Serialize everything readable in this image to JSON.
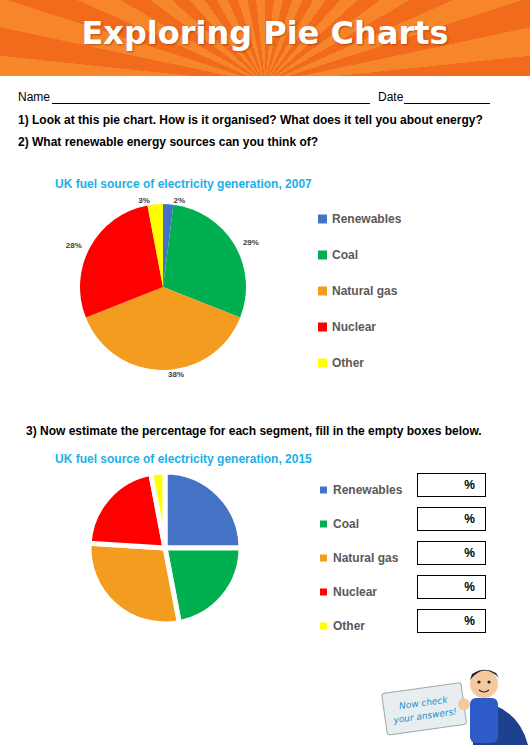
{
  "header": {
    "title": "Exploring Pie Charts"
  },
  "fields": [
    {
      "label": "Name"
    },
    {
      "label": "Date"
    }
  ],
  "questions": [
    "1) Look at this pie chart. How is it organised? What does it tell you about energy?",
    "2) What renewable energy sources can you think of?",
    "3) Now estimate the percentage for each segment, fill in the empty boxes below."
  ],
  "chart_data": [
    {
      "type": "pie",
      "title": "UK fuel source of electricity generation, 2007",
      "categories": [
        "Renewables",
        "Coal",
        "Natural gas",
        "Nuclear",
        "Other"
      ],
      "values": [
        2,
        29,
        38,
        28,
        3
      ],
      "value_labels": [
        "2%",
        "29%",
        "38%",
        "28%",
        "3%"
      ],
      "colors": [
        "#4472c4",
        "#00b050",
        "#f39c1f",
        "#ff0000",
        "#ffff00"
      ],
      "data_labels": true,
      "legend": "right"
    },
    {
      "type": "pie",
      "title": "UK fuel source of electricity generation, 2015",
      "categories": [
        "Renewables",
        "Coal",
        "Natural gas",
        "Nuclear",
        "Other"
      ],
      "values": [
        25,
        22,
        29,
        21,
        3
      ],
      "colors": [
        "#4472c4",
        "#00b050",
        "#f39c1f",
        "#ff0000",
        "#ffff00"
      ],
      "data_labels": false,
      "legend": "right"
    }
  ],
  "answer_boxes": {
    "unit": "%"
  },
  "badge": {
    "text": [
      "Now check",
      "your answers!"
    ]
  }
}
